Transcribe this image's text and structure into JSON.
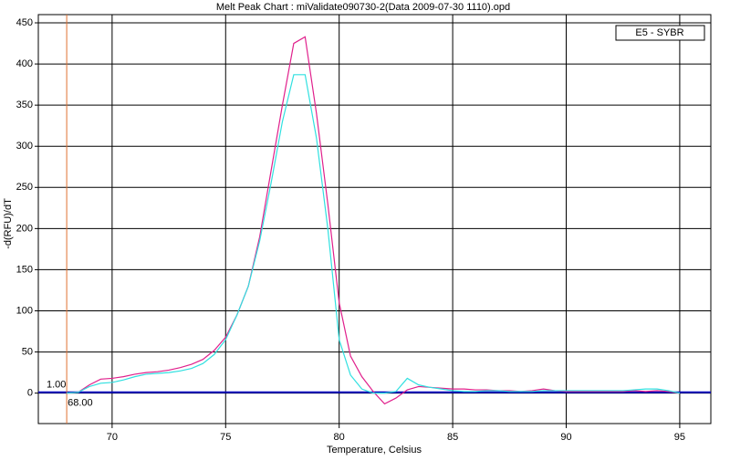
{
  "chart_data": {
    "type": "line",
    "title": "Melt Peak Chart : miValidate090730-2(Data 2009-07-30 1110).opd",
    "x_label": "Temperature, Celsius",
    "y_label": "-d(RFU)/dT",
    "legend": "E5 - SYBR",
    "x": [
      68,
      68.5,
      69,
      69.5,
      70,
      70.5,
      71,
      71.5,
      72,
      72.5,
      73,
      73.5,
      74,
      74.5,
      75,
      75.5,
      76,
      76.5,
      77,
      77.5,
      78,
      78.5,
      79,
      79.5,
      80,
      80.5,
      81,
      81.5,
      82,
      82.5,
      83,
      83.5,
      84,
      84.5,
      85,
      85.5,
      86,
      86.5,
      87,
      87.5,
      88,
      88.5,
      89,
      89.5,
      90,
      90.5,
      91,
      91.5,
      92,
      92.5,
      93,
      93.5,
      94,
      94.5,
      95
    ],
    "series": [
      {
        "color": "#e0208c",
        "values": [
          0,
          1,
          10,
          17,
          18,
          20,
          23,
          25,
          26,
          28,
          31,
          35,
          41,
          52,
          68,
          95,
          130,
          190,
          270,
          350,
          425,
          433,
          340,
          230,
          110,
          45,
          20,
          2,
          -13,
          -6,
          4,
          8,
          7,
          6,
          5,
          5,
          4,
          4,
          3,
          3,
          2,
          3,
          5,
          3,
          2,
          2,
          2,
          2,
          2,
          2,
          3,
          2,
          3,
          2,
          0
        ]
      },
      {
        "color": "#30e0e0",
        "values": [
          0,
          1,
          8,
          12,
          13,
          16,
          20,
          23,
          24,
          25,
          27,
          30,
          36,
          47,
          65,
          95,
          130,
          185,
          255,
          330,
          387,
          387,
          310,
          200,
          65,
          22,
          5,
          0,
          0,
          2,
          18,
          10,
          7,
          5,
          3,
          2,
          2,
          3,
          3,
          2,
          2,
          2,
          3,
          3,
          3,
          3,
          3,
          3,
          3,
          3,
          4,
          5,
          5,
          3,
          0
        ]
      }
    ],
    "threshold": {
      "value": 1,
      "label": "1.00",
      "color": "#0000c0"
    },
    "marker_x": {
      "value": 68,
      "label": "68.00",
      "color": "#e07030"
    },
    "xlim": [
      66.75,
      96.37
    ],
    "ylim": [
      -37,
      460
    ],
    "xticks": [
      70,
      75,
      80,
      85,
      90,
      95
    ],
    "yticks": [
      0,
      50,
      100,
      150,
      200,
      250,
      300,
      350,
      400,
      450
    ],
    "grid": true
  }
}
